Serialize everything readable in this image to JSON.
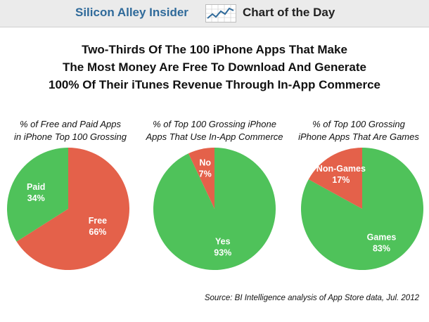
{
  "header": {
    "brand": "Silicon Alley Insider",
    "tagline": "Chart of the Day",
    "logo_icon": "rising-line-chart-icon"
  },
  "title_lines": [
    "Two-Thirds Of The 100 iPhone Apps That Make",
    "The Most Money Are Free To Download And Generate",
    "100% Of Their iTunes Revenue Through In-App Commerce"
  ],
  "colors": {
    "red": "#e4614a",
    "green": "#4fc25a",
    "brand_blue": "#2f6a9a"
  },
  "chart_data": [
    {
      "type": "pie",
      "title_lines": [
        "% of Free and Paid Apps",
        "in iPhone Top 100 Grossing"
      ],
      "slices": [
        {
          "label": "Free",
          "value": 66,
          "value_label": "66%",
          "color": "#e4614a"
        },
        {
          "label": "Paid",
          "value": 34,
          "value_label": "34%",
          "color": "#4fc25a"
        }
      ]
    },
    {
      "type": "pie",
      "title_lines": [
        "% of Top 100 Grossing iPhone",
        "Apps That Use In-App Commerce"
      ],
      "slices": [
        {
          "label": "Yes",
          "value": 93,
          "value_label": "93%",
          "color": "#4fc25a"
        },
        {
          "label": "No",
          "value": 7,
          "value_label": "7%",
          "color": "#e4614a"
        }
      ]
    },
    {
      "type": "pie",
      "title_lines": [
        "% of Top 100 Grossing",
        "iPhone Apps That Are Games"
      ],
      "slices": [
        {
          "label": "Games",
          "value": 83,
          "value_label": "83%",
          "color": "#4fc25a"
        },
        {
          "label": "Non-Games",
          "value": 17,
          "value_label": "17%",
          "color": "#e4614a"
        }
      ]
    }
  ],
  "source": "Source: BI Intelligence analysis of App Store data, Jul. 2012"
}
